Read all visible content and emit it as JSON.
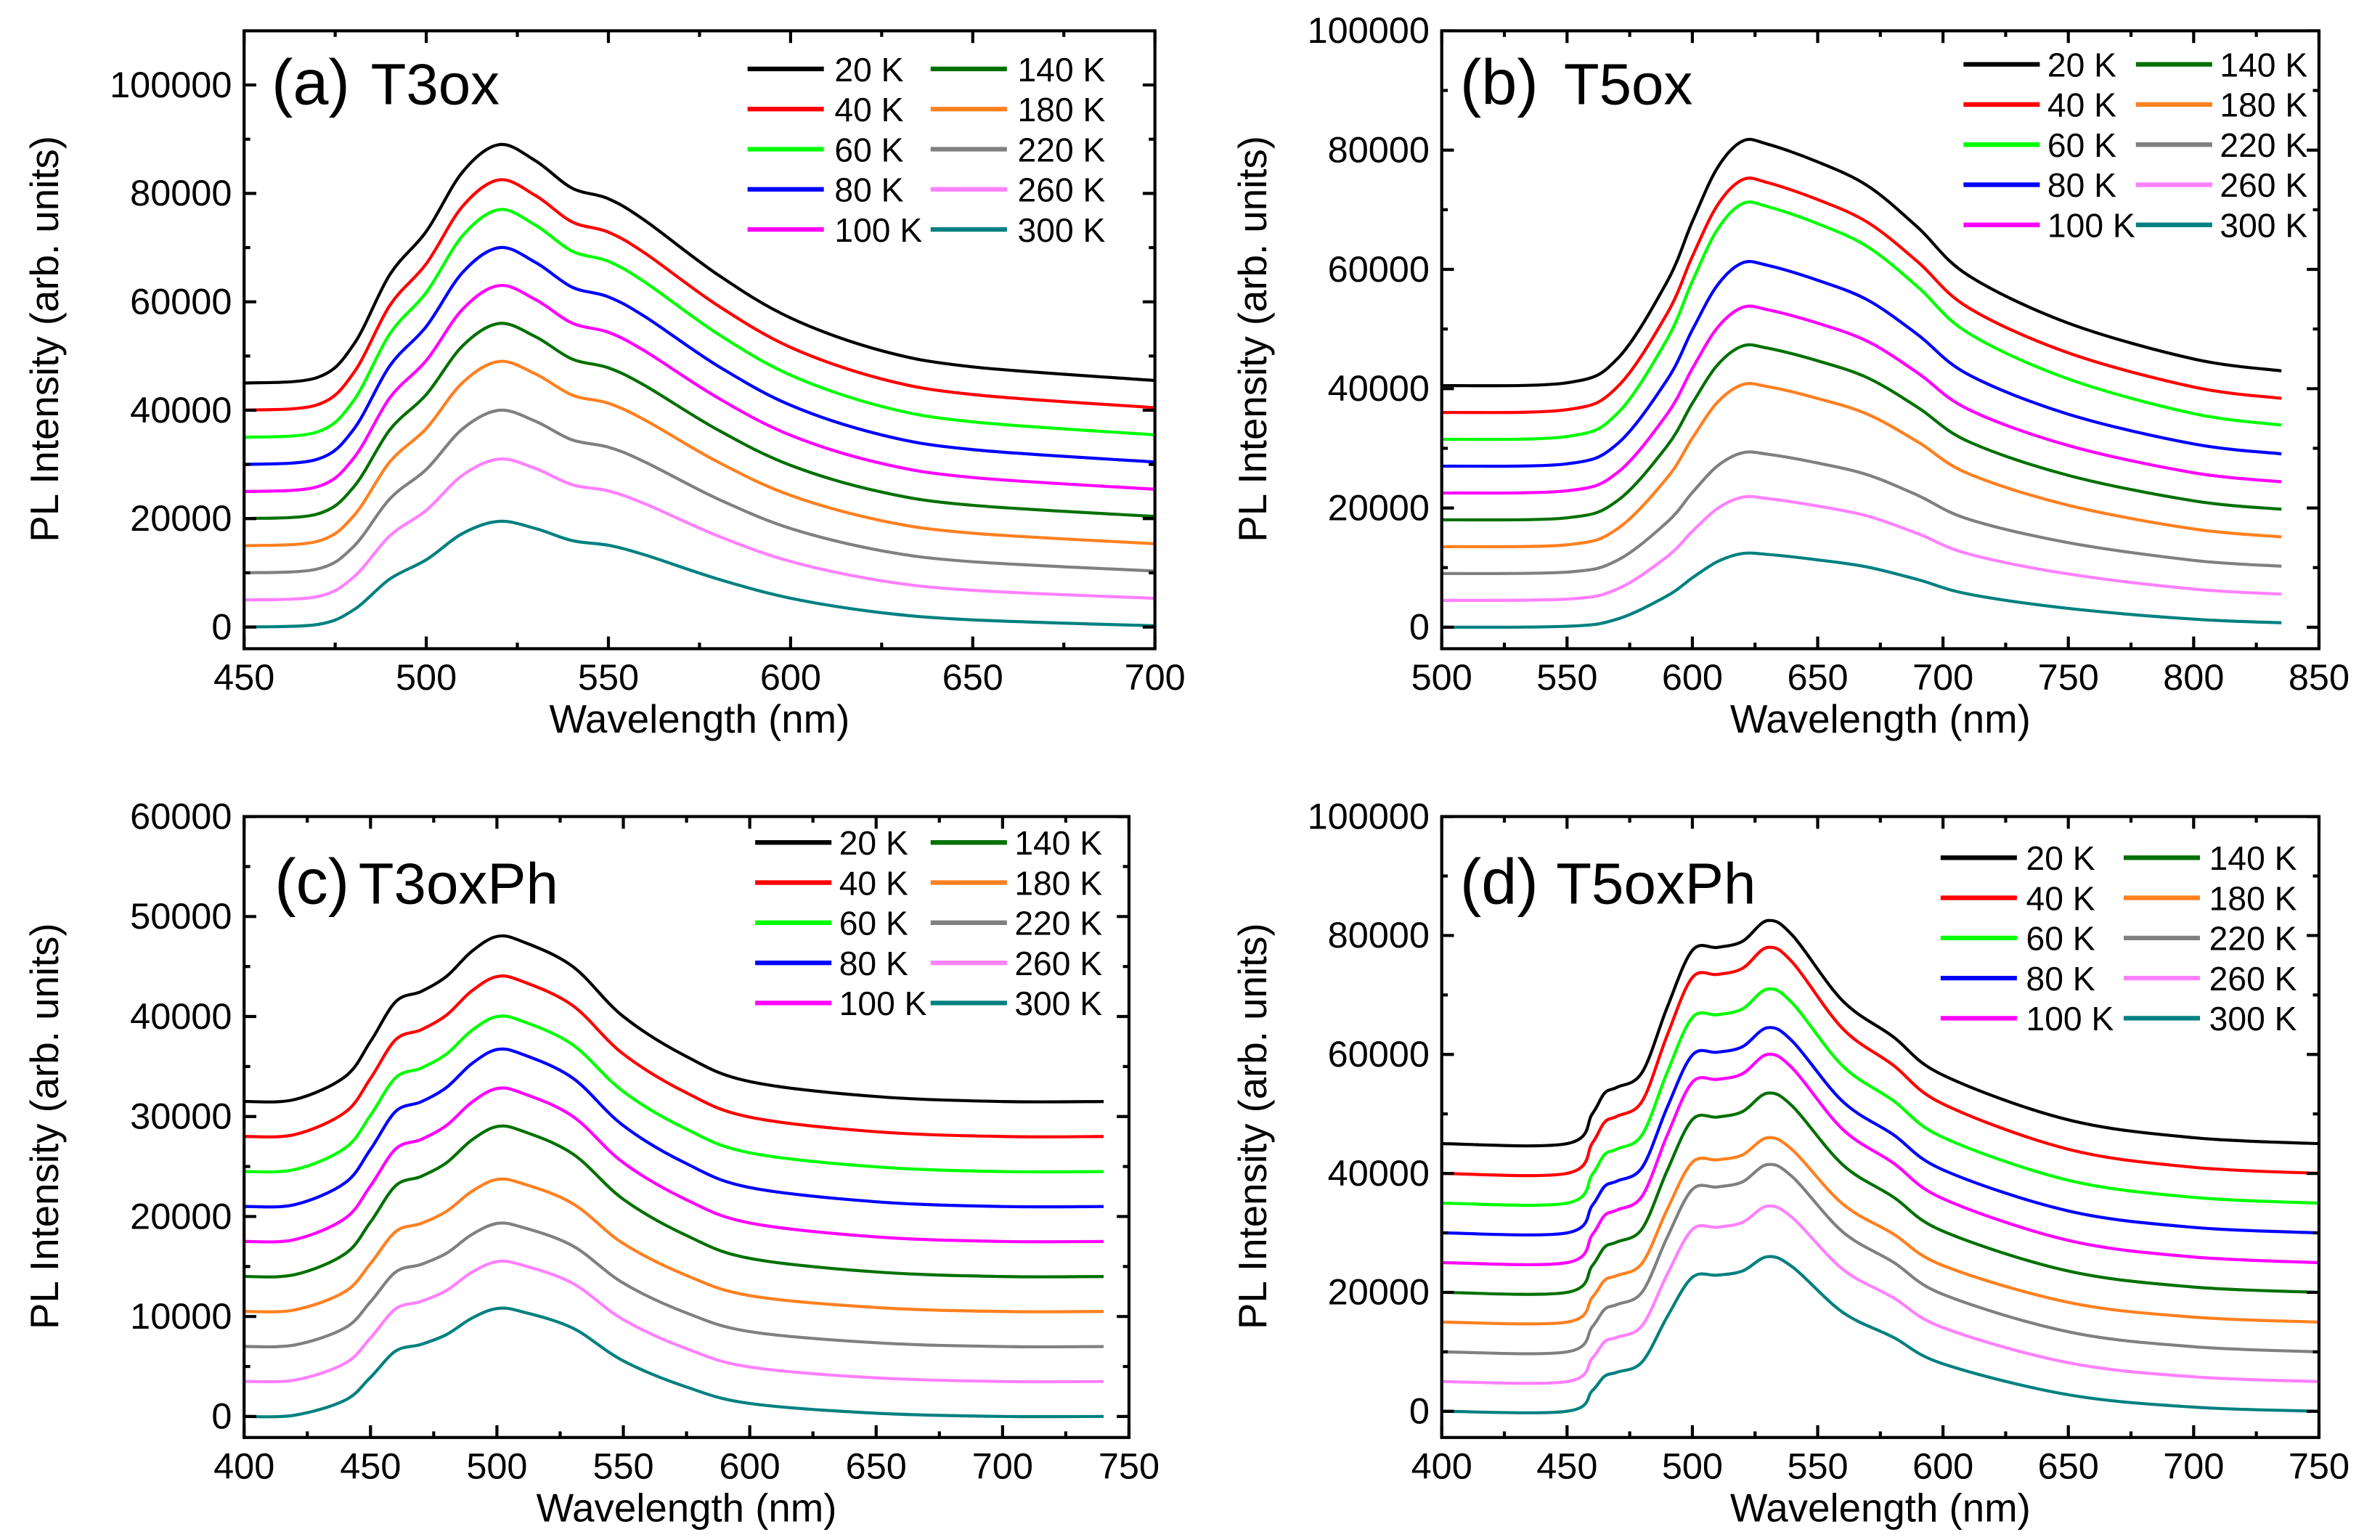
{
  "chart_data": [
    {
      "type": "line",
      "panel_label": "(a)",
      "title": "T3ox",
      "xlabel": "Wavelength (nm)",
      "ylabel": "PL Intensity (arb. units)",
      "xlim": [
        450,
        700
      ],
      "ylim": [
        -4000,
        110000
      ],
      "xticks": [
        450,
        500,
        550,
        600,
        650,
        700
      ],
      "yticks": [
        0,
        20000,
        40000,
        60000,
        80000,
        100000
      ],
      "legend": "top-right",
      "x": [
        450,
        470,
        480,
        490,
        500,
        510,
        520,
        530,
        540,
        550,
        560,
        580,
        600,
        625,
        650,
        700
      ],
      "profile": [
        0,
        0.023,
        0.16,
        0.455,
        0.636,
        0.886,
        1,
        0.932,
        0.818,
        0.773,
        0.682,
        0.455,
        0.273,
        0.136,
        0.068,
        0.011
      ],
      "series": [
        {
          "name": "20 K",
          "color": "#000000",
          "offset": 45000,
          "peak": 89000
        },
        {
          "name": "40 K",
          "color": "#ff0000",
          "offset": 40000,
          "peak": 82500
        },
        {
          "name": "60 K",
          "color": "#00ff00",
          "offset": 35000,
          "peak": 77000
        },
        {
          "name": "80 K",
          "color": "#0000ff",
          "offset": 30000,
          "peak": 70000
        },
        {
          "name": "100 K",
          "color": "#ff00ff",
          "offset": 25000,
          "peak": 63000
        },
        {
          "name": "140 K",
          "color": "#007000",
          "offset": 20000,
          "peak": 56000
        },
        {
          "name": "180 K",
          "color": "#ff8020",
          "offset": 15000,
          "peak": 49000
        },
        {
          "name": "220 K",
          "color": "#808080",
          "offset": 10000,
          "peak": 40000
        },
        {
          "name": "260 K",
          "color": "#ff80ff",
          "offset": 5000,
          "peak": 31000
        },
        {
          "name": "300 K",
          "color": "#008080",
          "offset": 0,
          "peak": 19500
        }
      ]
    },
    {
      "type": "line",
      "panel_label": "(b)",
      "title": "T5ox",
      "xlabel": "Wavelength (nm)",
      "ylabel": "PL Intensity (arb. units)",
      "xlim": [
        500,
        850
      ],
      "ylim": [
        -3600,
        100000
      ],
      "xticks": [
        500,
        550,
        600,
        650,
        700,
        750,
        800,
        850
      ],
      "yticks": [
        0,
        20000,
        40000,
        60000,
        80000,
        100000
      ],
      "legend": "top-right",
      "x": [
        500,
        550,
        570,
        590,
        600,
        610,
        620,
        630,
        650,
        670,
        690,
        710,
        750,
        800,
        835
      ],
      "profile": [
        0,
        0.012,
        0.108,
        0.422,
        0.663,
        0.88,
        0.988,
        0.976,
        0.904,
        0.807,
        0.639,
        0.446,
        0.253,
        0.108,
        0.06
      ],
      "series": [
        {
          "name": "20 K",
          "color": "#000000",
          "offset": 40500,
          "peak": 82000
        },
        {
          "name": "40 K",
          "color": "#ff0000",
          "offset": 36000,
          "peak": 75500
        },
        {
          "name": "60 K",
          "color": "#00ff00",
          "offset": 31500,
          "peak": 71500
        },
        {
          "name": "80 K",
          "color": "#0000ff",
          "offset": 27000,
          "peak": 61500
        },
        {
          "name": "100 K",
          "color": "#ff00ff",
          "offset": 22500,
          "peak": 54000
        },
        {
          "name": "140 K",
          "color": "#007000",
          "offset": 18000,
          "peak": 47500
        },
        {
          "name": "180 K",
          "color": "#ff8020",
          "offset": 13500,
          "peak": 41000
        },
        {
          "name": "220 K",
          "color": "#808080",
          "offset": 9000,
          "peak": 29500
        },
        {
          "name": "260 K",
          "color": "#ff80ff",
          "offset": 4500,
          "peak": 22000
        },
        {
          "name": "300 K",
          "color": "#008080",
          "offset": 0,
          "peak": 12500
        }
      ]
    },
    {
      "type": "line",
      "panel_label": "(c)",
      "title": "T3oxPh",
      "xlabel": "Wavelength (nm)",
      "ylabel": "PL Intensity (arb. units)",
      "xlim": [
        400,
        750
      ],
      "ylim": [
        -2100,
        60000
      ],
      "xticks": [
        400,
        450,
        500,
        550,
        600,
        650,
        700,
        750
      ],
      "yticks": [
        0,
        10000,
        20000,
        30000,
        40000,
        50000,
        60000
      ],
      "legend": "top-right",
      "x": [
        400,
        420,
        440,
        450,
        460,
        470,
        480,
        490,
        500,
        510,
        530,
        550,
        575,
        600,
        650,
        700,
        740
      ],
      "profile": [
        0,
        0.012,
        0.152,
        0.364,
        0.606,
        0.667,
        0.758,
        0.909,
        1,
        0.97,
        0.818,
        0.515,
        0.273,
        0.121,
        0.03,
        0,
        0
      ],
      "series": [
        {
          "name": "20 K",
          "color": "#000000",
          "offset": 31500,
          "peak": 48000
        },
        {
          "name": "40 K",
          "color": "#ff0000",
          "offset": 28000,
          "peak": 44000
        },
        {
          "name": "60 K",
          "color": "#00ff00",
          "offset": 24500,
          "peak": 40000
        },
        {
          "name": "80 K",
          "color": "#0000ff",
          "offset": 21000,
          "peak": 36700
        },
        {
          "name": "100 K",
          "color": "#ff00ff",
          "offset": 17500,
          "peak": 32800
        },
        {
          "name": "140 K",
          "color": "#007000",
          "offset": 14000,
          "peak": 29000
        },
        {
          "name": "180 K",
          "color": "#ff8020",
          "offset": 10500,
          "peak": 23700
        },
        {
          "name": "220 K",
          "color": "#808080",
          "offset": 7000,
          "peak": 19300
        },
        {
          "name": "260 K",
          "color": "#ff80ff",
          "offset": 3500,
          "peak": 15500
        },
        {
          "name": "300 K",
          "color": "#008080",
          "offset": 0,
          "peak": 10800
        }
      ]
    },
    {
      "type": "line",
      "panel_label": "(d)",
      "title": "T5oxPh",
      "xlabel": "Wavelength (nm)",
      "ylabel": "PL Intensity (arb. units)",
      "xlim": [
        400,
        750
      ],
      "ylim": [
        -4400,
        100000
      ],
      "xticks": [
        400,
        450,
        500,
        550,
        600,
        650,
        700,
        750
      ],
      "yticks": [
        0,
        20000,
        40000,
        60000,
        80000,
        100000
      ],
      "legend": "top-right",
      "x": [
        400,
        450,
        460,
        465,
        470,
        480,
        490,
        500,
        510,
        520,
        530,
        540,
        560,
        580,
        600,
        650,
        700,
        750
      ],
      "profile": [
        0,
        0,
        0.133,
        0.227,
        0.253,
        0.32,
        0.613,
        0.867,
        0.88,
        0.907,
        1,
        0.933,
        0.64,
        0.48,
        0.307,
        0.107,
        0.027,
        0
      ],
      "series": [
        {
          "name": "20 K",
          "color": "#000000",
          "offset": 45000,
          "peak": 82500
        },
        {
          "name": "40 K",
          "color": "#ff0000",
          "offset": 40000,
          "peak": 78000
        },
        {
          "name": "60 K",
          "color": "#00ff00",
          "offset": 35000,
          "peak": 71000
        },
        {
          "name": "80 K",
          "color": "#0000ff",
          "offset": 30000,
          "peak": 64500
        },
        {
          "name": "100 K",
          "color": "#ff00ff",
          "offset": 25000,
          "peak": 60000
        },
        {
          "name": "140 K",
          "color": "#007000",
          "offset": 20000,
          "peak": 53500
        },
        {
          "name": "180 K",
          "color": "#ff8020",
          "offset": 15000,
          "peak": 46000
        },
        {
          "name": "220 K",
          "color": "#808080",
          "offset": 10000,
          "peak": 41500
        },
        {
          "name": "260 K",
          "color": "#ff80ff",
          "offset": 5000,
          "peak": 34500
        },
        {
          "name": "300 K",
          "color": "#008080",
          "offset": 0,
          "peak": 26000
        }
      ]
    }
  ]
}
